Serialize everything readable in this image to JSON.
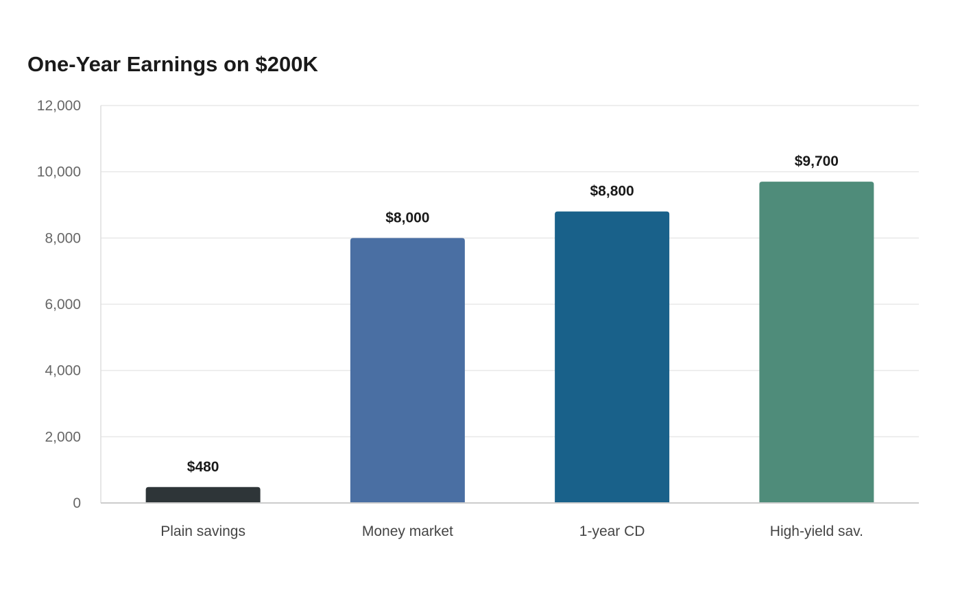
{
  "chart_data": {
    "type": "bar",
    "title": "One-Year Earnings on $200K",
    "xlabel": "",
    "ylabel": "",
    "categories": [
      "Plain savings",
      "Money market",
      "1-year CD",
      "High-yield sav."
    ],
    "values": [
      480,
      8000,
      8800,
      9700
    ],
    "data_labels": [
      "$480",
      "$8,000",
      "$8,800",
      "$9,700"
    ],
    "colors": [
      "#2e3538",
      "#4a6fa3",
      "#19618a",
      "#4f8c7a"
    ],
    "ylim": [
      0,
      12000
    ],
    "yticks": [
      0,
      2000,
      4000,
      6000,
      8000,
      10000,
      12000
    ],
    "ytick_labels": [
      "0",
      "2,000",
      "4,000",
      "6,000",
      "8,000",
      "10,000",
      "12,000"
    ],
    "grid": true,
    "legend": "none"
  }
}
